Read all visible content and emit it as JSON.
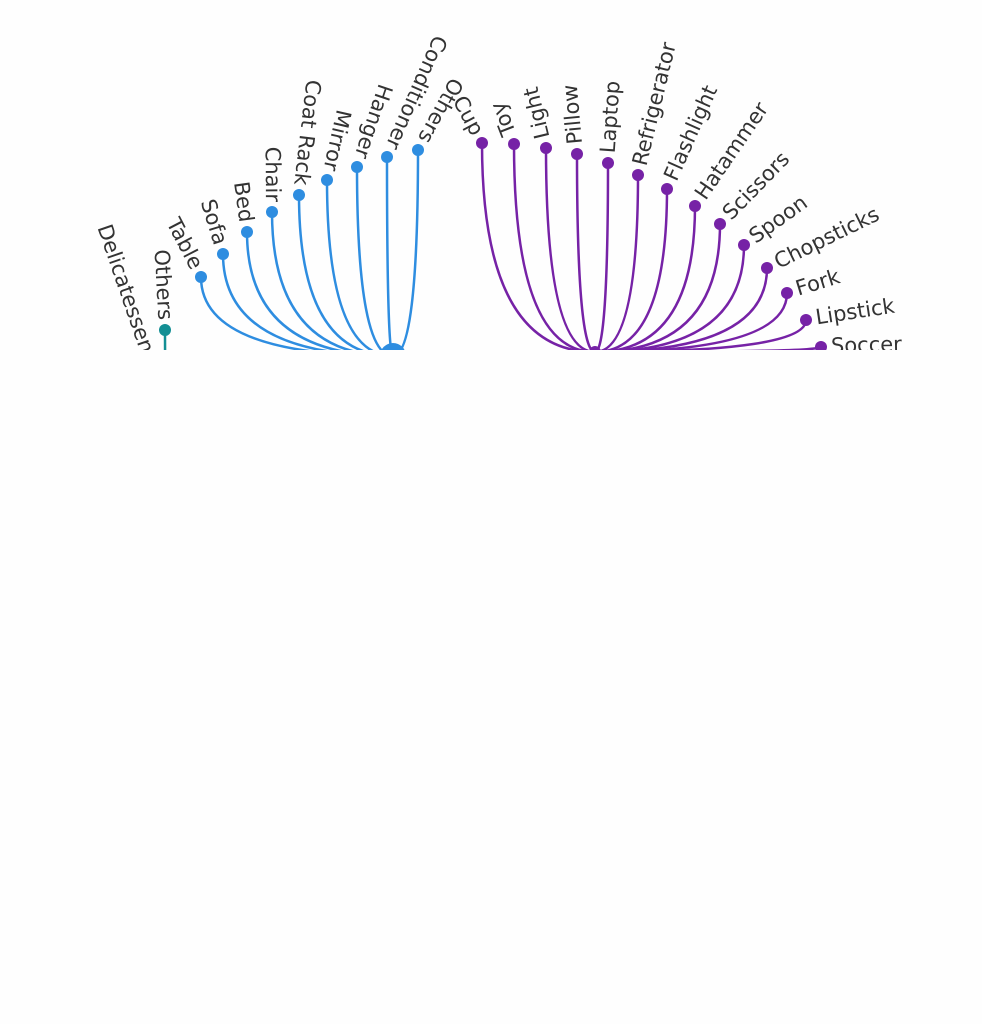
{
  "clusters": [
    {
      "leaves": [
        "Others",
        "Delicatessen"
      ]
    },
    {
      "leaves": [
        "Table",
        "Sofa",
        "Bed",
        "Chair",
        "Coat Rack",
        "Mirror",
        "Hanger",
        "Conditioner",
        "Others"
      ]
    },
    {
      "leaves": [
        "Cup",
        "Toy",
        "Light",
        "Pillow",
        "Laptop",
        "Refrigerator",
        "Flashlight",
        "Hatammer",
        "Scissors",
        "Spoon",
        "Chopsticks",
        "Fork",
        "Lipstick",
        "Soccer"
      ]
    }
  ]
}
